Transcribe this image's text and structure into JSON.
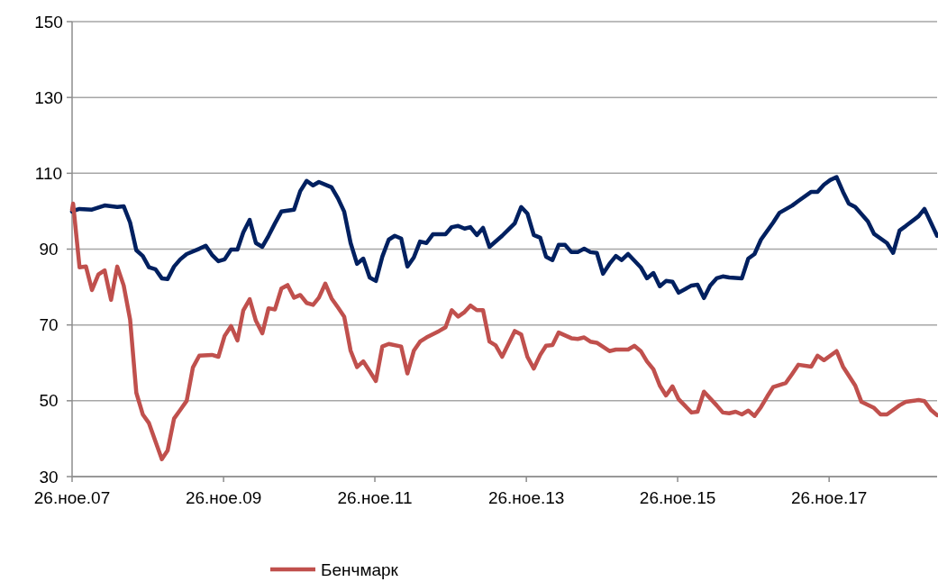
{
  "chart_data": {
    "type": "line",
    "xlim": [
      "2007-11-26",
      "2019-05-01"
    ],
    "xticks": [
      {
        "value": "2007-11-26",
        "label": "26.ное.07"
      },
      {
        "value": "2009-11-26",
        "label": "26.ное.09"
      },
      {
        "value": "2011-11-26",
        "label": "26.ное.11"
      },
      {
        "value": "2013-11-26",
        "label": "26.ное.13"
      },
      {
        "value": "2015-11-26",
        "label": "26.ное.15"
      },
      {
        "value": "2017-11-26",
        "label": "26.ное.17"
      }
    ],
    "ylim": [
      30,
      150
    ],
    "yticks": [
      30,
      50,
      70,
      90,
      110,
      130,
      150
    ],
    "grid": "y",
    "legend": "bottom",
    "line_style": "solid",
    "marker": "none",
    "series": [
      {
        "color": "#002060",
        "x": [
          "2007-11-26",
          "2007-12",
          "2008-01",
          "2008-03",
          "2008-05",
          "2008-07",
          "2008-08",
          "2008-09",
          "2008-10",
          "2008-11",
          "2008-12",
          "2009-01",
          "2009-02",
          "2009-03",
          "2009-04",
          "2009-05",
          "2009-06",
          "2009-08",
          "2009-09",
          "2009-10",
          "2009-11",
          "2009-12",
          "2010-01",
          "2010-02",
          "2010-03",
          "2010-04",
          "2010-05",
          "2010-06",
          "2010-07",
          "2010-08",
          "2010-09",
          "2010-11",
          "2010-12",
          "2011-01",
          "2011-02",
          "2011-03",
          "2011-05",
          "2011-06",
          "2011-07",
          "2011-08",
          "2011-09",
          "2011-10",
          "2011-11",
          "2011-12",
          "2012-01",
          "2012-02",
          "2012-03",
          "2012-04",
          "2012-05",
          "2012-06",
          "2012-07",
          "2012-08",
          "2012-09",
          "2012-11",
          "2012-12",
          "2013-01",
          "2013-02",
          "2013-03",
          "2013-04",
          "2013-05",
          "2013-06",
          "2013-08",
          "2013-10",
          "2013-11",
          "2013-12",
          "2014-01",
          "2014-02",
          "2014-03",
          "2014-04",
          "2014-05",
          "2014-06",
          "2014-07",
          "2014-08",
          "2014-09",
          "2014-10",
          "2014-11",
          "2014-12",
          "2015-01",
          "2015-02",
          "2015-03",
          "2015-04",
          "2015-06",
          "2015-07",
          "2015-08",
          "2015-09",
          "2015-10",
          "2015-11",
          "2015-12",
          "2016-02",
          "2016-03",
          "2016-04",
          "2016-05",
          "2016-06",
          "2016-07",
          "2016-08",
          "2016-10",
          "2016-11",
          "2016-12",
          "2017-01",
          "2017-03",
          "2017-04",
          "2017-06",
          "2017-07",
          "2017-09",
          "2017-10",
          "2017-11",
          "2017-12",
          "2018-01",
          "2018-02",
          "2018-03",
          "2018-04",
          "2018-06",
          "2018-07",
          "2018-09",
          "2018-10",
          "2018-11",
          "2018-12",
          "2019-02",
          "2019-03",
          "2019-05"
        ],
        "values": [
          99.9,
          100.1,
          100.6,
          100.4,
          101.5,
          101.1,
          101.3,
          97.0,
          89.7,
          88.2,
          85.2,
          84.7,
          82.3,
          82.1,
          85.4,
          87.3,
          88.7,
          90.1,
          90.9,
          88.5,
          86.8,
          87.3,
          89.9,
          89.9,
          94.4,
          97.7,
          91.6,
          90.6,
          93.5,
          96.8,
          99.9,
          100.4,
          105.3,
          108.0,
          106.8,
          107.7,
          106.3,
          103.4,
          99.9,
          91.6,
          86.1,
          87.5,
          82.5,
          81.6,
          88.0,
          92.5,
          93.5,
          92.8,
          85.4,
          87.8,
          92.0,
          91.6,
          93.9,
          93.9,
          95.8,
          96.1,
          95.4,
          95.8,
          93.7,
          95.6,
          90.6,
          93.5,
          96.8,
          101.1,
          99.4,
          93.7,
          93.0,
          88.0,
          87.1,
          91.1,
          91.1,
          89.2,
          89.2,
          90.1,
          89.2,
          89.0,
          83.5,
          86.1,
          88.2,
          87.1,
          88.7,
          85.2,
          82.3,
          83.7,
          80.2,
          81.6,
          81.4,
          78.5,
          80.4,
          80.6,
          77.1,
          80.4,
          82.3,
          82.8,
          82.5,
          82.3,
          87.5,
          88.7,
          92.5,
          97.0,
          99.6,
          101.5,
          102.7,
          105.1,
          105.1,
          107.0,
          108.2,
          109.0,
          105.1,
          102.0,
          101.1,
          97.3,
          94.0,
          91.6,
          89.0,
          94.9,
          96.1,
          98.7,
          100.6,
          93.5
        ]
      },
      {
        "name": "Бенчмарк",
        "color": "#c0504d",
        "x": [
          "2007-11-26",
          "2007-12",
          "2008-01",
          "2008-02",
          "2008-03",
          "2008-04",
          "2008-05",
          "2008-06",
          "2008-07",
          "2008-08",
          "2008-09",
          "2008-10",
          "2008-11",
          "2008-12",
          "2009-01",
          "2009-02",
          "2009-03",
          "2009-04",
          "2009-05",
          "2009-06",
          "2009-07",
          "2009-08",
          "2009-10",
          "2009-11",
          "2009-12",
          "2010-01",
          "2010-02",
          "2010-03",
          "2010-04",
          "2010-05",
          "2010-06",
          "2010-07",
          "2010-08",
          "2010-09",
          "2010-10",
          "2010-11",
          "2010-12",
          "2011-01",
          "2011-02",
          "2011-03",
          "2011-04",
          "2011-05",
          "2011-06",
          "2011-07",
          "2011-08",
          "2011-09",
          "2011-10",
          "2011-11",
          "2011-12",
          "2012-01",
          "2012-02",
          "2012-04",
          "2012-05",
          "2012-06",
          "2012-07",
          "2012-08",
          "2012-10",
          "2012-11",
          "2012-12",
          "2013-01",
          "2013-02",
          "2013-03",
          "2013-04",
          "2013-05",
          "2013-06",
          "2013-07",
          "2013-08",
          "2013-10",
          "2013-11",
          "2013-12",
          "2014-01",
          "2014-02",
          "2014-03",
          "2014-04",
          "2014-05",
          "2014-07",
          "2014-08",
          "2014-09",
          "2014-10",
          "2014-11",
          "2015-01",
          "2015-02",
          "2015-04",
          "2015-05",
          "2015-06",
          "2015-07",
          "2015-08",
          "2015-09",
          "2015-10",
          "2015-11",
          "2015-12",
          "2016-02",
          "2016-03",
          "2016-04",
          "2016-06",
          "2016-07",
          "2016-08",
          "2016-09",
          "2016-10",
          "2016-11",
          "2016-12",
          "2017-01",
          "2017-02",
          "2017-03",
          "2017-05",
          "2017-06",
          "2017-07",
          "2017-09",
          "2017-10",
          "2017-11",
          "2018-01",
          "2018-02",
          "2018-04",
          "2018-05",
          "2018-07",
          "2018-08",
          "2018-09",
          "2018-11",
          "2018-12",
          "2019-02",
          "2019-03",
          "2019-04",
          "2019-05"
        ],
        "values": [
          100.4,
          102.0,
          85.2,
          85.4,
          79.2,
          83.3,
          84.4,
          76.6,
          85.4,
          80.4,
          71.4,
          52.1,
          46.4,
          44.1,
          39.3,
          34.6,
          36.9,
          45.3,
          47.6,
          50.0,
          58.8,
          61.9,
          62.1,
          61.6,
          67.1,
          69.7,
          65.9,
          73.8,
          76.8,
          71.1,
          67.8,
          74.4,
          74.1,
          79.6,
          80.5,
          77.2,
          77.9,
          75.8,
          75.3,
          77.2,
          80.9,
          77.0,
          74.6,
          72.2,
          63.2,
          58.9,
          60.4,
          57.8,
          55.2,
          64.3,
          65.0,
          64.3,
          57.2,
          63.2,
          65.6,
          66.7,
          68.4,
          69.4,
          73.9,
          72.2,
          73.4,
          75.1,
          73.9,
          73.9,
          65.6,
          64.6,
          61.6,
          68.4,
          67.5,
          61.6,
          58.5,
          62.1,
          64.5,
          64.7,
          68.0,
          66.5,
          66.3,
          66.7,
          65.6,
          65.3,
          63.1,
          63.5,
          63.5,
          64.5,
          63.1,
          60.4,
          58.3,
          54.0,
          51.4,
          53.8,
          50.4,
          46.9,
          47.1,
          52.4,
          48.8,
          46.9,
          46.7,
          47.1,
          46.4,
          47.4,
          46.0,
          48.3,
          51.2,
          53.6,
          54.7,
          57.1,
          59.5,
          59.0,
          61.9,
          60.7,
          63.1,
          59.0,
          54.0,
          49.7,
          48.1,
          46.4,
          46.4,
          48.8,
          49.7,
          50.2,
          49.9,
          47.6,
          46.2
        ]
      }
    ]
  }
}
